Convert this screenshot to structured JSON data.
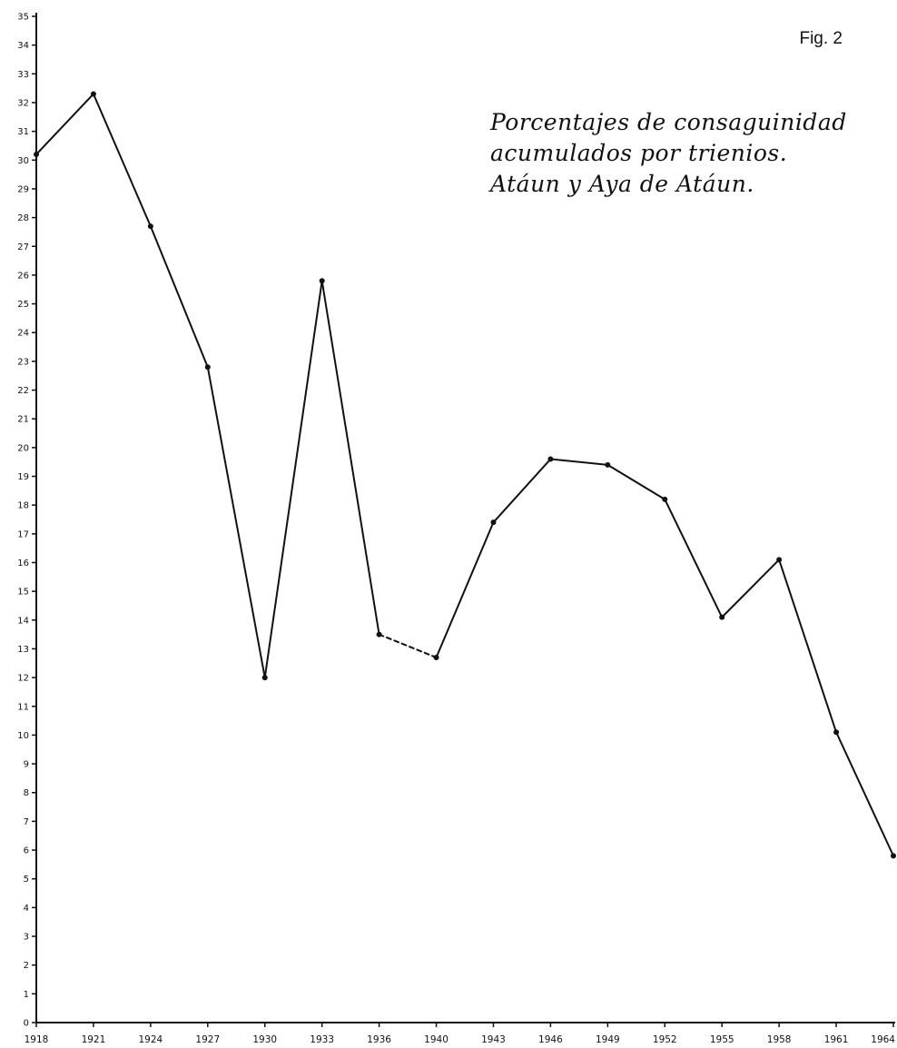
{
  "fig_label": "Fig. 2",
  "chart_data": {
    "type": "line",
    "title": "Porcentajes de consaguinidad\nacumulados por trienios.\nAtáun y Aya de Atáun.",
    "xlabel": "",
    "ylabel": "",
    "categories": [
      "1918",
      "1921",
      "1924",
      "1927",
      "1930",
      "1933",
      "1936",
      "1940",
      "1943",
      "1946",
      "1949",
      "1952",
      "1955",
      "1958",
      "1961",
      "1964"
    ],
    "values": [
      30.2,
      32.3,
      27.7,
      22.8,
      12.0,
      25.8,
      13.5,
      12.7,
      17.4,
      19.6,
      19.4,
      18.2,
      14.1,
      16.1,
      10.1,
      5.8
    ],
    "dashed_segments": [
      [
        6,
        7
      ]
    ],
    "ylim": [
      0,
      35
    ],
    "yticks": [
      0,
      1,
      2,
      3,
      4,
      5,
      6,
      7,
      8,
      9,
      10,
      11,
      12,
      13,
      14,
      15,
      16,
      17,
      18,
      19,
      20,
      21,
      22,
      23,
      24,
      25,
      26,
      27,
      28,
      29,
      30,
      31,
      32,
      33,
      34,
      35
    ],
    "grid": false,
    "legend": "none"
  },
  "colors": {
    "line": "#111111",
    "axis": "#111111",
    "background": "#ffffff"
  }
}
